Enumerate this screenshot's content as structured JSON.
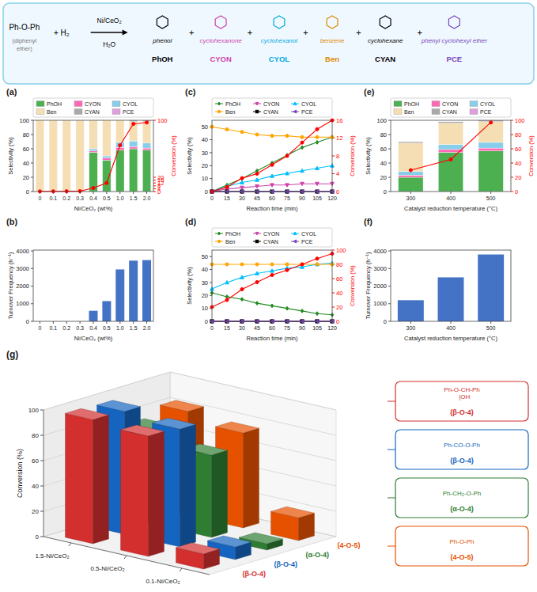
{
  "chart_data": [
    {
      "type": "scheme",
      "annotations": [
        "Ph-O-Ph",
        "(diphenyl",
        "ether)",
        "+  H₂",
        "Ni/CeO₂",
        "H₂O",
        "+"
      ],
      "categories": [
        "phenol",
        "cyclohexanone",
        "cyclohexanol",
        "benzene",
        "cyclohexane",
        "phenyl cyclohexyl ether"
      ],
      "labels": [
        "PhOH",
        "CYON",
        "CYOL",
        "Ben",
        "CYAN",
        "PCE"
      ],
      "colors": [
        "black",
        "#CC44AA",
        "#00AADD",
        "#DD8800",
        "black",
        "#7744BB"
      ]
    },
    {
      "type": "bar",
      "title": "(a)",
      "stacked": true,
      "legend": "upper left",
      "categories": [
        "0",
        "0.1",
        "0.2",
        "0.3",
        "0.4",
        "0.5",
        "1.0",
        "1.5",
        "2.0"
      ],
      "xlabel": "Ni/CeO₂ (wt%)",
      "ylabel": "Selectivity (%)",
      "y2label": "Conversion (%)",
      "ylim": [
        0,
        100
      ],
      "yticks": [
        0,
        20,
        40,
        60,
        80,
        100
      ],
      "y2lim": [
        0,
        100
      ],
      "y2ticks": [
        0,
        4,
        8,
        12,
        16,
        20,
        100
      ],
      "series": [
        {
          "name": "PhOH",
          "color": "#4CAF50",
          "values": [
            0,
            0,
            0,
            0,
            55,
            44,
            58,
            60,
            58
          ]
        },
        {
          "name": "CYON",
          "color": "#FF69B4",
          "values": [
            0,
            0,
            0,
            0,
            2,
            3,
            4,
            3,
            3
          ]
        },
        {
          "name": "CYOL",
          "color": "#87CEEB",
          "values": [
            0,
            0,
            0,
            0,
            3,
            3,
            7,
            8,
            7
          ]
        },
        {
          "name": "Ben",
          "color": "#F5DEB3",
          "values": [
            100,
            100,
            100,
            100,
            40,
            50,
            31,
            27,
            30
          ]
        },
        {
          "name": "CYAN",
          "color": "#A9A9A9",
          "values": [
            0,
            0,
            0,
            0,
            0,
            0,
            0,
            2,
            2
          ]
        },
        {
          "name": "PCE",
          "color": "#DDA0DD",
          "values": [
            0,
            0,
            0,
            0,
            0,
            0,
            0,
            0,
            0
          ]
        },
        {
          "type": "line",
          "axis": "y2",
          "color": "red",
          "marker": "circle",
          "values": [
            0.2,
            0.3,
            0.4,
            0.5,
            5,
            12,
            65,
            95,
            97
          ]
        }
      ]
    },
    {
      "type": "bar",
      "title": "(b)",
      "categories": [
        "0",
        "0.1",
        "0.2",
        "0.3",
        "0.4",
        "0.5",
        "1.0",
        "1.5",
        "2.0"
      ],
      "values": [
        0,
        0,
        0,
        0,
        600,
        1150,
        2950,
        3450,
        3480
      ],
      "color": "#4472C4",
      "xlabel": "Ni/CeO₂ (wt%)",
      "ylabel": "Turnover Frequency (h⁻¹)",
      "ylim": [
        0,
        4050
      ],
      "yticks": [
        0,
        1000,
        2000,
        3000,
        4000
      ]
    },
    {
      "type": "line",
      "title": "(c)",
      "legend": "upper left",
      "x": [
        0,
        15,
        30,
        45,
        60,
        75,
        90,
        105,
        120
      ],
      "xlim": [
        0,
        120
      ],
      "xticks": [
        0,
        15,
        30,
        45,
        60,
        75,
        90,
        105,
        120
      ],
      "xlabel": "Reaction time (min)",
      "ylabel": "Selectivity (%)",
      "y2label": "Conversion (%)",
      "ylim": [
        0,
        55
      ],
      "yticks": [
        0,
        10,
        20,
        30,
        40,
        50
      ],
      "y2lim": [
        0,
        16
      ],
      "y2ticks": [
        0,
        4,
        8,
        12,
        16
      ],
      "series": [
        {
          "name": "PhOH",
          "color": "#228B22",
          "marker": "diamond",
          "values": [
            0,
            5,
            10,
            16,
            22,
            28,
            34,
            38,
            42
          ]
        },
        {
          "name": "CYON",
          "color": "#CC44AA",
          "marker": "triangle-down",
          "values": [
            0,
            2,
            3,
            4,
            5,
            5,
            6,
            6,
            6
          ]
        },
        {
          "name": "CYOL",
          "color": "#00BFFF",
          "marker": "triangle-up",
          "values": [
            0,
            4,
            7,
            9,
            12,
            14,
            16,
            18,
            20
          ]
        },
        {
          "name": "Ben",
          "color": "#FFA500",
          "marker": "circle",
          "values": [
            50,
            48,
            46,
            44,
            43,
            43,
            42,
            42,
            42
          ]
        },
        {
          "name": "CYAN",
          "color": "black",
          "marker": "square",
          "values": [
            0,
            0,
            0,
            0,
            0,
            0,
            0,
            0,
            0
          ]
        },
        {
          "name": "PCE",
          "color": "#7744BB",
          "marker": "triangle-left",
          "values": [
            0,
            0,
            0,
            0,
            0,
            0,
            0,
            0,
            0
          ]
        },
        {
          "axis": "y2",
          "color": "red",
          "marker": "circle",
          "values": [
            0,
            1,
            3,
            4,
            6,
            8,
            11,
            14,
            16
          ]
        }
      ]
    },
    {
      "type": "line",
      "title": "(d)",
      "legend": "upper left",
      "x": [
        0,
        15,
        30,
        45,
        60,
        75,
        90,
        105,
        120
      ],
      "xlim": [
        0,
        120
      ],
      "xticks": [
        0,
        15,
        30,
        45,
        60,
        75,
        90,
        105,
        120
      ],
      "xlabel": "Reaction time (min)",
      "ylabel": "Selectivity (%)",
      "y2label": "Conversion (%)",
      "ylim": [
        0,
        55
      ],
      "yticks": [
        0,
        10,
        20,
        30,
        40,
        50
      ],
      "y2lim": [
        0,
        100
      ],
      "y2ticks": [
        0,
        20,
        40,
        60,
        80,
        100
      ],
      "series": [
        {
          "name": "PhOH",
          "color": "#228B22",
          "marker": "diamond",
          "values": [
            22,
            19,
            17,
            14,
            12,
            10,
            8,
            6,
            5
          ]
        },
        {
          "name": "CYON",
          "color": "#CC44AA",
          "marker": "triangle-down",
          "values": [
            0,
            0,
            0,
            0,
            0,
            0,
            0,
            0,
            0
          ]
        },
        {
          "name": "CYOL",
          "color": "#00BFFF",
          "marker": "triangle-up",
          "values": [
            25,
            30,
            34,
            37,
            39,
            41,
            42,
            44,
            45
          ]
        },
        {
          "name": "Ben",
          "color": "#FFA500",
          "marker": "circle",
          "values": [
            44,
            44,
            44,
            44,
            44,
            44,
            44,
            44,
            44
          ]
        },
        {
          "name": "CYAN",
          "color": "black",
          "marker": "square",
          "values": [
            0,
            0,
            0,
            0,
            0,
            0,
            0,
            0,
            0
          ]
        },
        {
          "name": "PCE",
          "color": "#7744BB",
          "marker": "triangle-left",
          "values": [
            0,
            0,
            0,
            0,
            0,
            0,
            0,
            0,
            0
          ]
        },
        {
          "axis": "y2",
          "color": "red",
          "marker": "circle",
          "values": [
            20,
            30,
            45,
            55,
            65,
            72,
            80,
            88,
            95
          ]
        }
      ]
    },
    {
      "type": "bar",
      "title": "(e)",
      "stacked": true,
      "legend": "upper left",
      "categories": [
        "300",
        "400",
        "500"
      ],
      "xlabel": "Catalyst reduction temperature (°C)",
      "ylabel": "Selectivity (%)",
      "y2label": "Conversion (%)",
      "ylim": [
        0,
        100
      ],
      "yticks": [
        0,
        20,
        40,
        60,
        80,
        100
      ],
      "y2lim": [
        0,
        100
      ],
      "y2ticks": [
        0,
        20,
        40,
        60,
        80,
        100
      ],
      "series": [
        {
          "name": "PhOH",
          "color": "#4CAF50",
          "values": [
            20,
            55,
            57
          ]
        },
        {
          "name": "CYON",
          "color": "#FF69B4",
          "values": [
            3,
            4,
            4
          ]
        },
        {
          "name": "CYOL",
          "color": "#87CEEB",
          "values": [
            5,
            7,
            8
          ]
        },
        {
          "name": "Ben",
          "color": "#F5DEB3",
          "values": [
            40,
            30,
            29
          ]
        },
        {
          "name": "CYAN",
          "color": "#A9A9A9",
          "values": [
            2,
            2,
            2
          ]
        },
        {
          "name": "PCE",
          "color": "#DDA0DD",
          "values": [
            0,
            0,
            0
          ]
        },
        {
          "type": "line",
          "axis": "y2",
          "color": "red",
          "marker": "circle",
          "values": [
            30,
            45,
            97
          ]
        }
      ]
    },
    {
      "type": "bar",
      "title": "(f)",
      "categories": [
        "300",
        "400",
        "500"
      ],
      "values": [
        1200,
        2500,
        3800
      ],
      "color": "#4472C4",
      "xlabel": "Catalyst reduction temperature (°C)",
      "ylabel": "Turnover Frequency (h⁻¹)",
      "ylim": [
        0,
        4050
      ],
      "yticks": [
        0,
        1000,
        2000,
        3000,
        4000
      ]
    },
    {
      "type": "bar3d",
      "title": "(g)",
      "grid": true,
      "categories": [
        "1.5-Ni/CeO₂",
        "0.5-Ni/CeO₂",
        "0.1-Ni/CeO₂"
      ],
      "ylabel": "Conversion (%)",
      "ylim": [
        0,
        100
      ],
      "yticks": [
        0,
        20,
        40,
        60,
        80,
        100
      ],
      "series": [
        {
          "name": "(β-O-4)",
          "color": "#D32F2F",
          "values": [
            98,
            95,
            12
          ]
        },
        {
          "name": "(β-O-4)",
          "color": "#1565C0",
          "values": [
            97,
            93,
            10
          ]
        },
        {
          "name": "(α-O-4)",
          "color": "#2E7D32",
          "values": [
            75,
            65,
            5
          ]
        },
        {
          "name": "(4-O-5)",
          "color": "#E65100",
          "values": [
            82,
            75,
            18
          ]
        }
      ],
      "annotations": [
        "Ph-O-CH-Ph\n   |OH",
        "Ph-CO-O-Ph",
        "Ph-CH₂-O-Ph",
        "Ph-O-Ph"
      ]
    }
  ]
}
